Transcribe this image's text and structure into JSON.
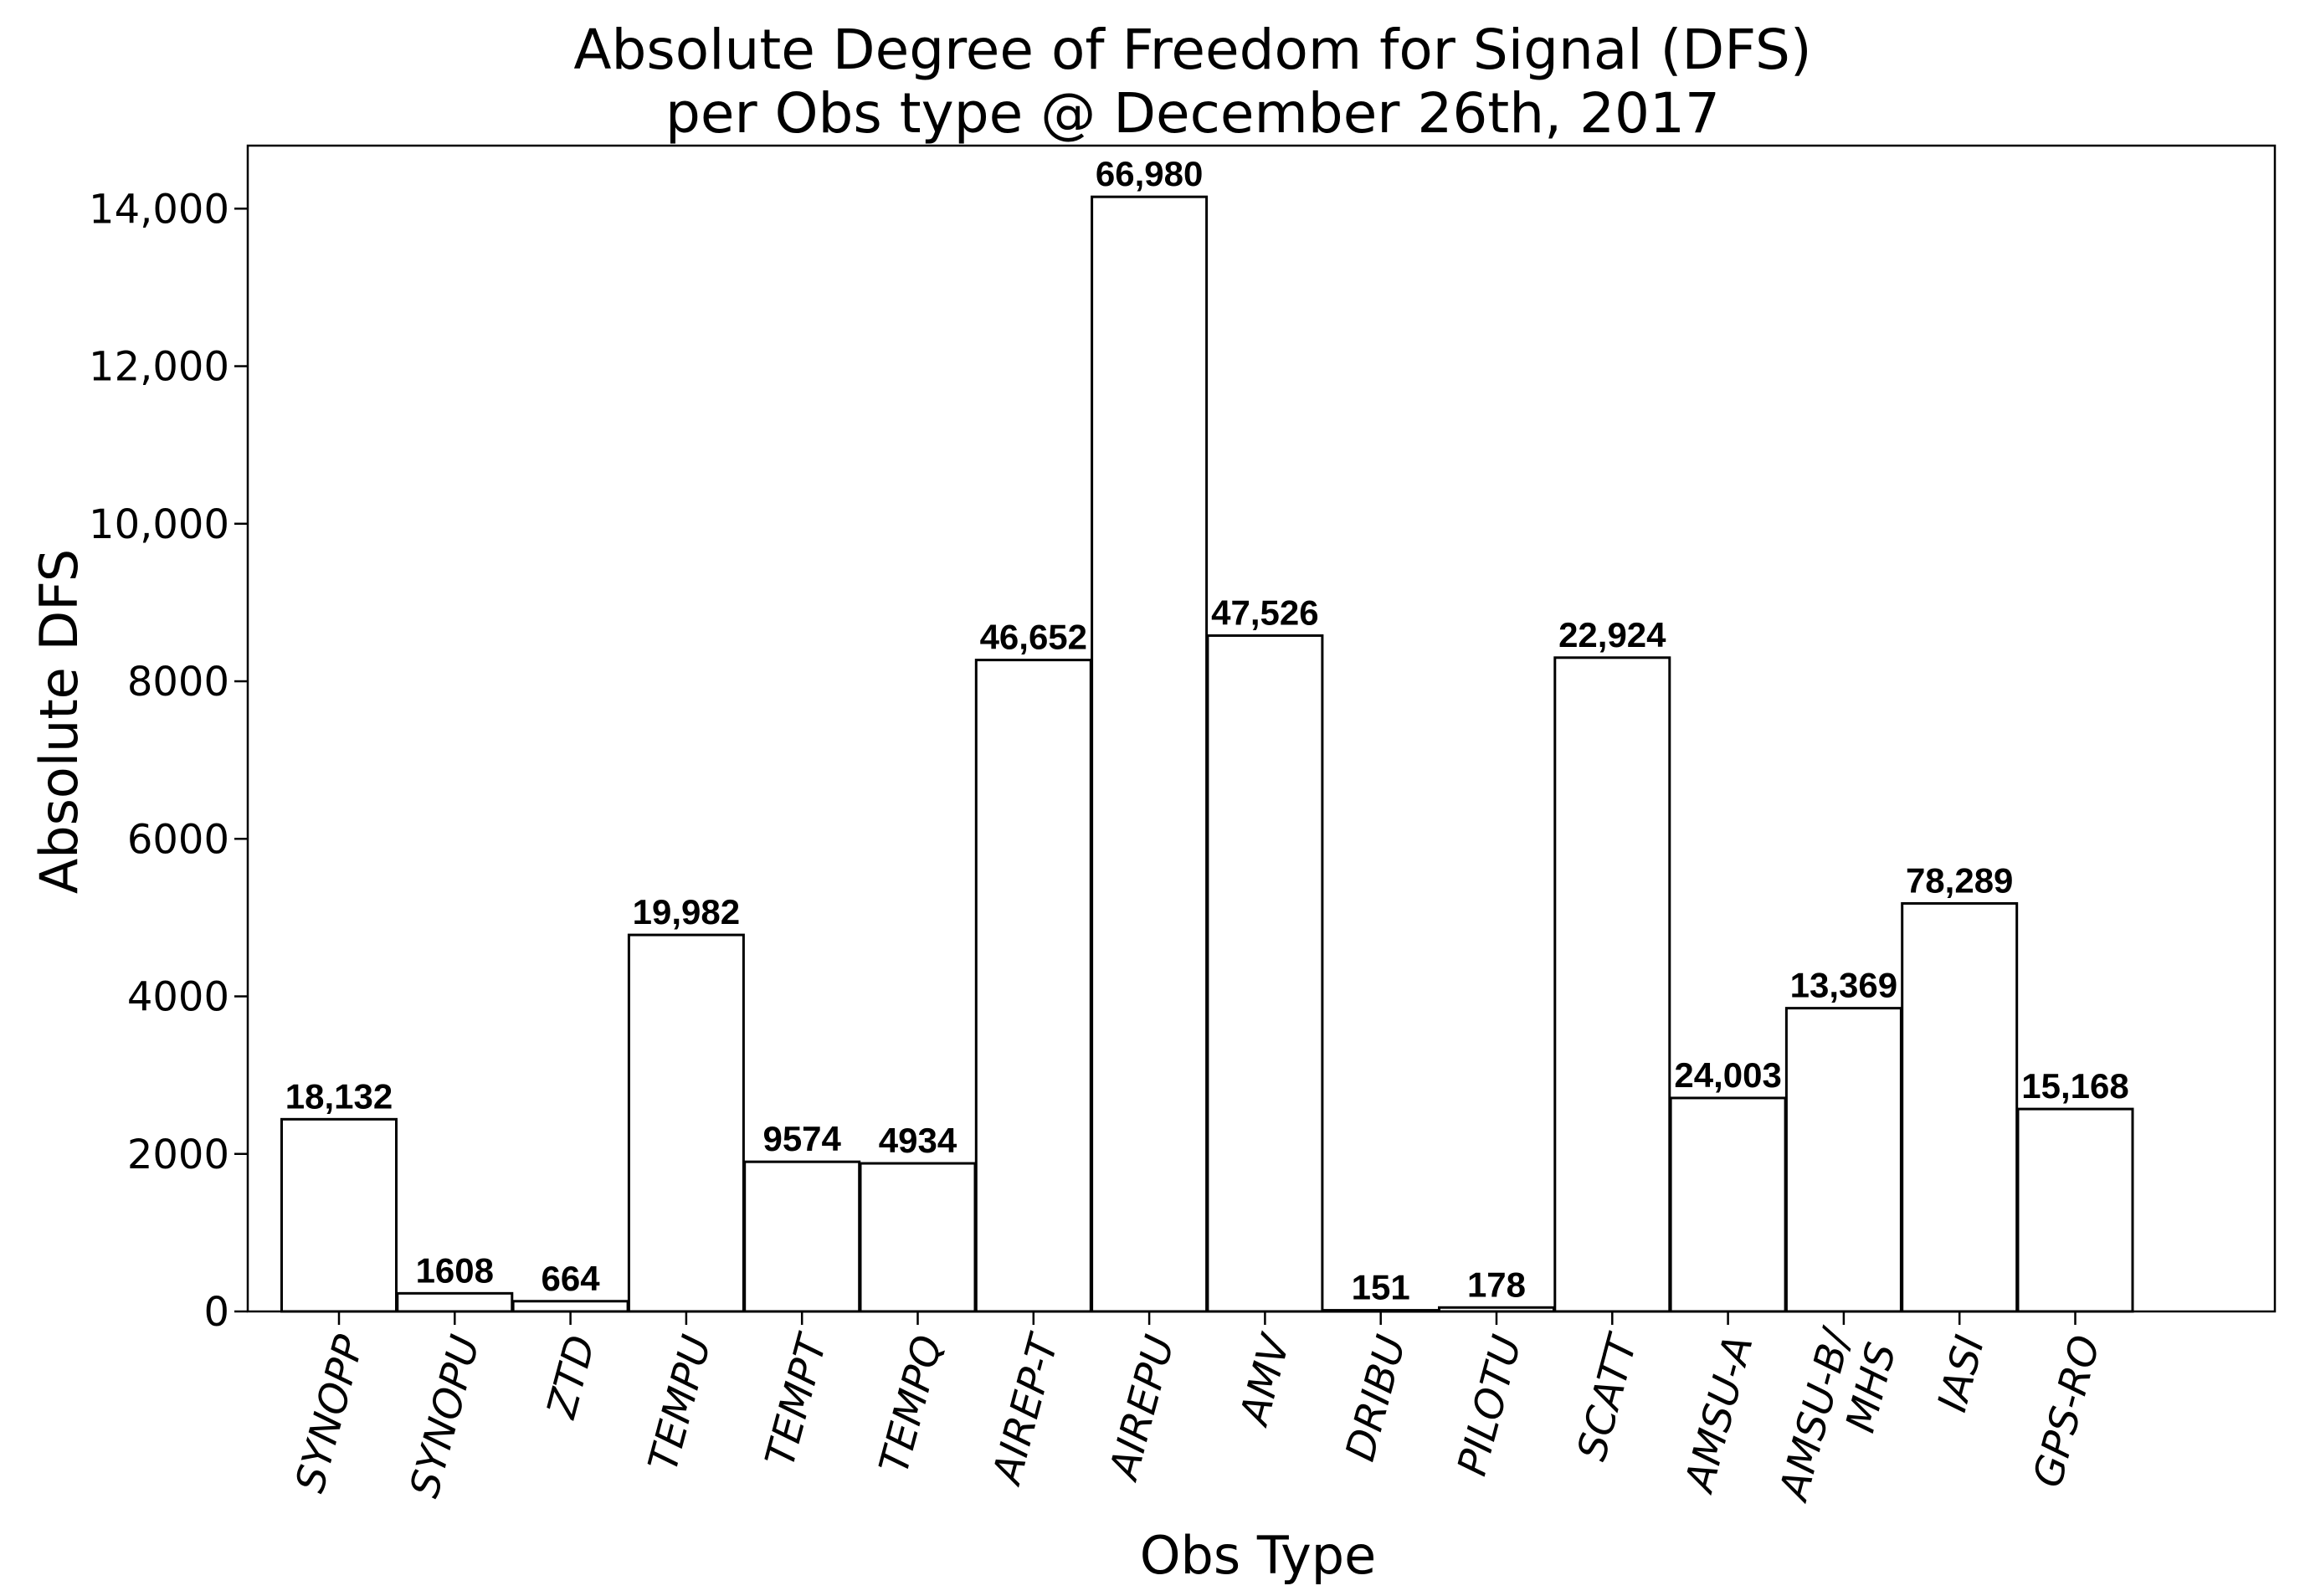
{
  "chart_data": {
    "type": "bar",
    "title": "Absolute Degree of Freedom for Signal (DFS)",
    "subtitle": "per Obs type @ December  26th,  2017",
    "xlabel": "Obs Type",
    "ylabel": "Absolute DFS",
    "ylim": [
      0,
      14800
    ],
    "yticks": [
      0,
      2000,
      4000,
      6000,
      8000,
      10000,
      12000,
      14000
    ],
    "ytick_labels": [
      "0",
      "2000",
      "4000",
      "6000",
      "8000",
      "10,000",
      "12,000",
      "14,000"
    ],
    "grid": false,
    "legend": "none",
    "categories": [
      [
        "SYNOPP"
      ],
      [
        "SYNOPU"
      ],
      [
        "ZTD"
      ],
      [
        "TEMPU"
      ],
      [
        "TEMPT"
      ],
      [
        "TEMPQ"
      ],
      [
        "AIREP-T"
      ],
      [
        "AIREPU"
      ],
      [
        "AMV"
      ],
      [
        "DRIBU"
      ],
      [
        "PILOTU"
      ],
      [
        "SCATT"
      ],
      [
        "AMSU-A"
      ],
      [
        "AMSU-B/",
        "MHS"
      ],
      [
        "IASI"
      ],
      [
        "GPS-RO"
      ]
    ],
    "values": [
      2440,
      230,
      130,
      4780,
      1900,
      1880,
      8270,
      14150,
      8580,
      15,
      50,
      8300,
      2710,
      3850,
      5180,
      2570
    ],
    "data_labels": [
      "18,132",
      "1608",
      "664",
      "19,982",
      "9574",
      "4934",
      "46,652",
      "66,980",
      "47,526",
      "151",
      "178",
      "22,924",
      "24,003",
      "13,369",
      "78,289",
      "15,168"
    ],
    "bar_fill": "#ffffff",
    "bar_edge": "#000000"
  }
}
